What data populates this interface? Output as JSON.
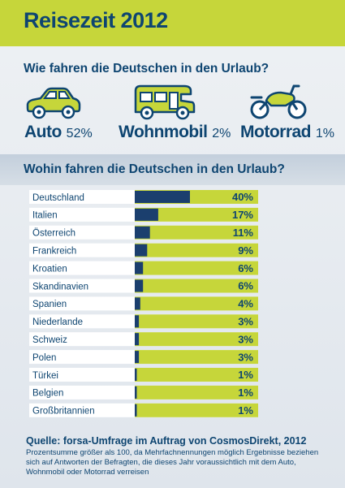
{
  "header": {
    "title": "Reisezeit 2012"
  },
  "question1": "Wie fahren die Deutschen in den Urlaub?",
  "vehicles": [
    {
      "name": "Auto",
      "percent": "52%",
      "icon": "car-icon",
      "value": 52
    },
    {
      "name": "Wohnmobil",
      "percent": "2%",
      "icon": "camper-icon",
      "value": 2
    },
    {
      "name": "Motorrad",
      "percent": "1%",
      "icon": "motorcycle-icon",
      "value": 1
    }
  ],
  "question2": "Wohin fahren die Deutschen in den Urlaub?",
  "colors": {
    "accent": "#c6d63a",
    "navy": "#0e4571",
    "bar": "#1b3f6e"
  },
  "chart_data": {
    "type": "bar",
    "orientation": "horizontal",
    "title": "Wohin fahren die Deutschen in den Urlaub?",
    "categories": [
      "Deutschland",
      "Italien",
      "Österreich",
      "Frankreich",
      "Kroatien",
      "Skandinavien",
      "Spanien",
      "Niederlande",
      "Schweiz",
      "Polen",
      "Türkei",
      "Belgien",
      "Großbritannien"
    ],
    "values": [
      40,
      17,
      11,
      9,
      6,
      6,
      4,
      3,
      3,
      3,
      1,
      1,
      1
    ],
    "labels": [
      "40%",
      "17%",
      "11%",
      "9%",
      "6%",
      "6%",
      "4%",
      "3%",
      "3%",
      "3%",
      "1%",
      "1%",
      "1%"
    ],
    "unit": "%",
    "xlim": [
      0,
      100
    ],
    "grid": false
  },
  "footer": {
    "source": "Quelle: forsa-Umfrage im Auftrag von CosmosDirekt, 2012",
    "note": "Prozentsumme größer als 100, da Mehrfachnennungen möglich Ergebnisse beziehen sich auf Antworten der Befragten, die dieses Jahr voraussichtlich mit dem Auto, Wohnmobil oder Motorrad verreisen"
  }
}
